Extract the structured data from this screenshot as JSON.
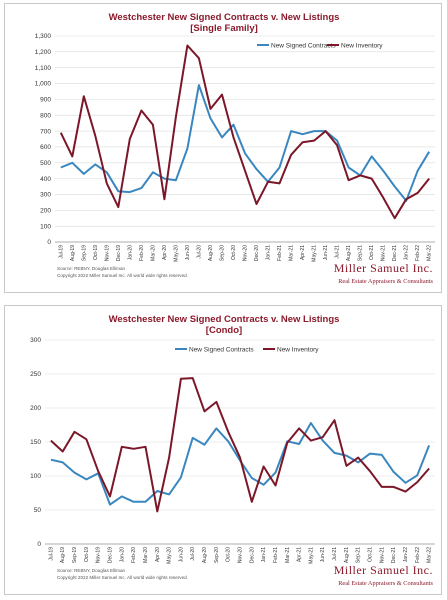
{
  "colors": {
    "new_signed": "#3a87c0",
    "new_listings": "#7b1728",
    "grid": "#d9d9d9"
  },
  "chart_data": [
    {
      "type": "line",
      "title": "Westchester New Signed Contracts v. New Listings",
      "subtitle": "[Single Family]",
      "ylim": [
        0,
        1300
      ],
      "yticks": [
        0,
        100,
        200,
        300,
        400,
        500,
        600,
        700,
        800,
        900,
        1000,
        1100,
        1200,
        1300
      ],
      "ytick_labels": [
        "0",
        "100",
        "200",
        "300",
        "400",
        "500",
        "600",
        "700",
        "800",
        "900",
        "1,000",
        "1,100",
        "1,200",
        "1,300"
      ],
      "categories": [
        "Jul-19",
        "Aug-19",
        "Sep-19",
        "Oct-19",
        "Nov-19",
        "Dec-19",
        "Jan-20",
        "Feb-20",
        "Mar-20",
        "Apr-20",
        "May-20",
        "Jun-20",
        "Jul-20",
        "Aug-20",
        "Sep-20",
        "Oct-20",
        "Nov-20",
        "Dec-20",
        "Jan-21",
        "Feb-21",
        "Mar-21",
        "Apr-21",
        "May-21",
        "Jun-21",
        "Jul-21",
        "Aug-21",
        "Sep-21",
        "Oct-21",
        "Nov-21",
        "Dec-21",
        "Jan-22",
        "Feb-22",
        "Mar-22"
      ],
      "tick_labels": [
        "Jul-19",
        "Aug-19",
        "Sep-19",
        "Oct-19",
        "Nov-19",
        "Dec-19",
        "Jan-20",
        "Feb-20",
        "Mar-20",
        "Apr-20",
        "May-20",
        "Jun-20",
        "Jul-20",
        "Aug-20",
        "Sep-20",
        "Oct-20",
        "Nov-20",
        "Dec-20",
        "Jan-21",
        "Feb-21",
        "Mar-21",
        "Apr-21",
        "May-21",
        "Jun-21",
        "Jul-21",
        "Aug-21",
        "Sep-21",
        "Oct-21",
        "Nov-21",
        "Dec-21",
        "Jan-22",
        "Feb-22",
        "Mar-22"
      ],
      "legend_position": "top-right",
      "grid": true,
      "series": [
        {
          "name": "New Signed Contracts",
          "values": [
            470,
            500,
            430,
            490,
            440,
            320,
            315,
            340,
            440,
            400,
            390,
            590,
            990,
            780,
            660,
            740,
            560,
            460,
            380,
            470,
            700,
            680,
            700,
            700,
            640,
            470,
            420,
            540,
            450,
            350,
            260,
            450,
            570
          ]
        },
        {
          "name": "New Inventory",
          "values": [
            690,
            540,
            920,
            670,
            370,
            220,
            650,
            830,
            740,
            270,
            790,
            1240,
            1160,
            840,
            930,
            660,
            450,
            240,
            380,
            370,
            550,
            630,
            640,
            700,
            610,
            390,
            420,
            400,
            280,
            150,
            270,
            310,
            400
          ]
        }
      ],
      "source_lines": [
        "Source: REBNY, Douglas Elliman",
        "Copyright 2022 Miller Samuel Inc. All world wide rights reserved."
      ]
    },
    {
      "type": "line",
      "title": "Westchester New Signed Contracts v. New Listings",
      "subtitle": "[Condo]",
      "ylim": [
        0,
        300
      ],
      "yticks": [
        0,
        50,
        100,
        150,
        200,
        250,
        300
      ],
      "ytick_labels": [
        "0",
        "50",
        "100",
        "150",
        "200",
        "250",
        "300"
      ],
      "categories": [
        "Jul-19",
        "Aug-19",
        "Sep-19",
        "Oct-19",
        "Nov-19",
        "Dec-19",
        "Jan-20",
        "Feb-20",
        "Mar-20",
        "Apr-20",
        "May-20",
        "Jun-20",
        "Jul-20",
        "Aug-20",
        "Sep-20",
        "Oct-20",
        "Nov-20",
        "Dec-20",
        "Jan-21",
        "Feb-21",
        "Mar-21",
        "Apr-21",
        "May-21",
        "Jun-21",
        "Jul-21",
        "Aug-21",
        "Sep-21",
        "Oct-21",
        "Nov-21",
        "Dec-21",
        "Jan-22",
        "Feb-22",
        "Mar-22"
      ],
      "tick_labels": [
        "Jul-19",
        "Aug-19",
        "Sep-19",
        "Oct-19",
        "Nov-19",
        "Dec-19",
        "Jan-20",
        "Feb-20",
        "Mar-20",
        "Apr-20",
        "May-20",
        "Jun-20",
        "Jul-20",
        "Aug-20",
        "Sep-20",
        "Oct-20",
        "Nov-20",
        "Dec-20",
        "Jan-21",
        "Feb-21",
        "Mar-21",
        "Apr-21",
        "May-21",
        "Jun-21",
        "Jul-21",
        "Aug-21",
        "Sep-21",
        "Oct-21",
        "Nov-21",
        "Dec-21",
        "Jan-22",
        "Feb-22",
        "Mar-22"
      ],
      "legend_position": "top-center",
      "grid": true,
      "series": [
        {
          "name": "New Signed Contracts",
          "values": [
            124,
            120,
            105,
            95,
            104,
            58,
            70,
            62,
            62,
            78,
            73,
            98,
            156,
            146,
            170,
            151,
            123,
            97,
            87,
            105,
            151,
            147,
            178,
            152,
            134,
            130,
            120,
            133,
            131,
            106,
            90,
            101,
            145
          ]
        },
        {
          "name": "New Inventory",
          "values": [
            152,
            136,
            165,
            154,
            107,
            70,
            143,
            140,
            143,
            48,
            127,
            243,
            244,
            195,
            209,
            165,
            127,
            62,
            114,
            86,
            149,
            170,
            152,
            157,
            182,
            115,
            127,
            107,
            84,
            84,
            77,
            91,
            111
          ]
        }
      ],
      "source_lines": [
        "Source: REBNY, Douglas Elliman",
        "Copyright 2022 Miller Samuel Inc. All world wide rights reserved."
      ]
    }
  ],
  "logo": {
    "name": "Miller Samuel Inc.",
    "tagline": "Real Estate Appraisers & Consultants"
  }
}
